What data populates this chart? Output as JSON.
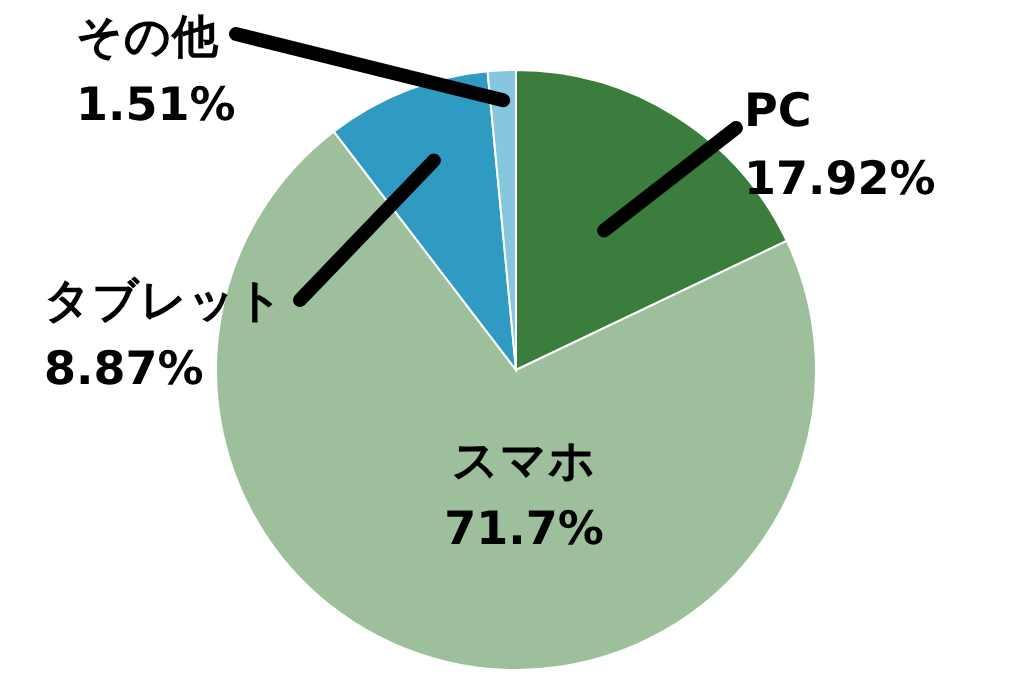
{
  "chart_data": {
    "type": "pie",
    "categories": [
      "PC",
      "スマホ",
      "タブレット",
      "その他"
    ],
    "values": [
      17.92,
      71.7,
      8.87,
      1.51
    ],
    "value_labels": [
      "17.92%",
      "71.7%",
      "8.87%",
      "1.51%"
    ],
    "colors": [
      "#3a7d3c",
      "#9dbf9b",
      "#2f9bc2",
      "#86c6de"
    ]
  }
}
